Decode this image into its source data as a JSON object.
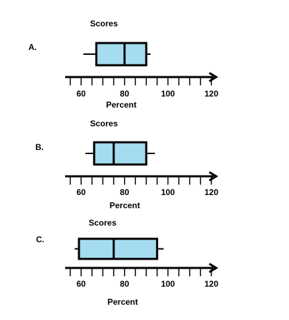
{
  "chart_data": [
    {
      "type": "box",
      "label": "A.",
      "title": "Scores",
      "xlabel": "Percent",
      "min": 61,
      "q1": 67,
      "median": 80,
      "q3": 90,
      "max": 92,
      "xlim": [
        52,
        120
      ],
      "xticks": [
        60,
        80,
        100,
        120
      ],
      "minor_xticks": [
        55,
        60,
        65,
        70,
        75,
        80,
        85,
        90,
        95,
        100,
        105,
        110,
        115,
        120
      ],
      "color": "#a6dcef"
    },
    {
      "type": "box",
      "label": "B.",
      "title": "Scores",
      "xlabel": "Percent",
      "min": 62,
      "q1": 66,
      "median": 75,
      "q3": 90,
      "max": 94,
      "xlim": [
        52,
        120
      ],
      "xticks": [
        60,
        80,
        100,
        120
      ],
      "minor_xticks": [
        55,
        60,
        65,
        70,
        75,
        80,
        85,
        90,
        95,
        100,
        105,
        110,
        115,
        120
      ],
      "color": "#a6dcef"
    },
    {
      "type": "box",
      "label": "C.",
      "title": "Scores",
      "xlabel": "Percent",
      "min": 57,
      "q1": 59,
      "median": 75,
      "q3": 95,
      "max": 98,
      "xlim": [
        52,
        120
      ],
      "xticks": [
        60,
        80,
        100,
        120
      ],
      "minor_xticks": [
        55,
        60,
        65,
        70,
        75,
        80,
        85,
        90,
        95,
        100,
        105,
        110,
        115,
        120
      ],
      "color": "#a6dcef"
    }
  ]
}
